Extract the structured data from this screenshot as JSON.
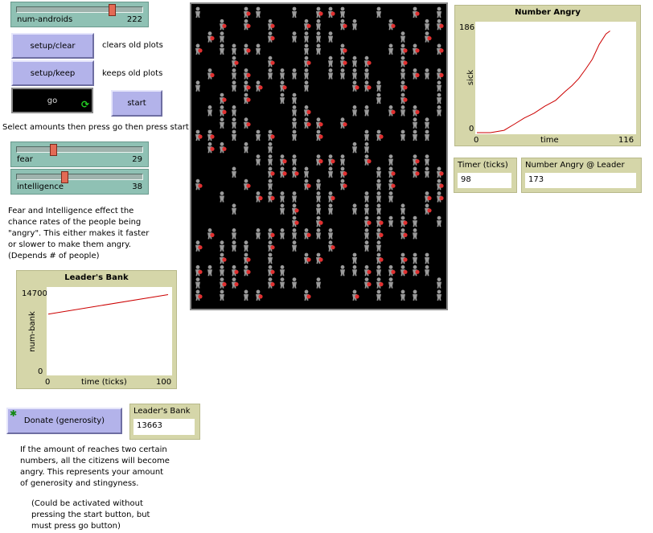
{
  "sliders": {
    "num_androids": {
      "label": "num-androids",
      "value": "222",
      "fraction": 0.78
    },
    "fear": {
      "label": "fear",
      "value": "29",
      "fraction": 0.29
    },
    "intelligence": {
      "label": "intelligence",
      "value": "38",
      "fraction": 0.38
    }
  },
  "buttons": {
    "setup_clear": "setup/clear",
    "setup_keep": "setup/keep",
    "go": "go",
    "start": "start",
    "donate": "Donate (generosity)"
  },
  "labels": {
    "clears_old_plots": "clears old plots",
    "keeps_old_plots": "keeps old plots",
    "select_amounts": "Select amounts then press go then press start",
    "fear_note": [
      "Fear and Intelligence effect the",
      "chance rates of the people being",
      "\"angry\". This either makes it faster",
      "or slower to make them angry.",
      "(Depends # of people)"
    ],
    "donate_note": [
      "If the amount of reaches two certain",
      "numbers, all the citizens will become",
      "angry. This represents your amount",
      "of generosity and stingyness."
    ],
    "activate_note": [
      "(Could be activated without",
      "pressing the start button, but",
      "must press go button)"
    ]
  },
  "monitors": {
    "timer": {
      "label": "Timer (ticks)",
      "value": "98"
    },
    "angry_at_leader": {
      "label": "Number Angry @ Leader",
      "value": "173"
    },
    "leaders_bank": {
      "label": "Leader's Bank",
      "value": "13663"
    }
  },
  "colors": {
    "plot_line": "#cc0000",
    "person": "#9a9a9a",
    "angry": "#e03030",
    "background": "#000000"
  },
  "chart_data": [
    {
      "type": "line",
      "title": "Number Angry",
      "xlabel": "time",
      "ylabel": "sick",
      "xlim": [
        0,
        116
      ],
      "ylim": [
        0,
        186
      ],
      "x_tick_labels": [
        "0",
        "116"
      ],
      "y_tick_labels": [
        "186",
        "0"
      ],
      "series": [
        {
          "x": [
            0,
            10,
            20,
            28,
            35,
            42,
            50,
            58,
            65,
            70,
            75,
            80,
            85,
            90,
            95,
            98
          ],
          "y": [
            0,
            0,
            4,
            15,
            25,
            33,
            45,
            55,
            70,
            80,
            92,
            108,
            125,
            150,
            168,
            173
          ]
        }
      ]
    },
    {
      "type": "line",
      "title": "Leader's Bank",
      "xlabel": "time (ticks)",
      "ylabel": "num-bank",
      "xlim": [
        0,
        100
      ],
      "ylim": [
        0,
        14700
      ],
      "x_tick_labels": [
        "0",
        "100"
      ],
      "y_tick_labels": [
        "14700",
        "0"
      ],
      "series": [
        {
          "x": [
            0,
            98
          ],
          "y": [
            10300,
            13663
          ]
        }
      ]
    }
  ]
}
